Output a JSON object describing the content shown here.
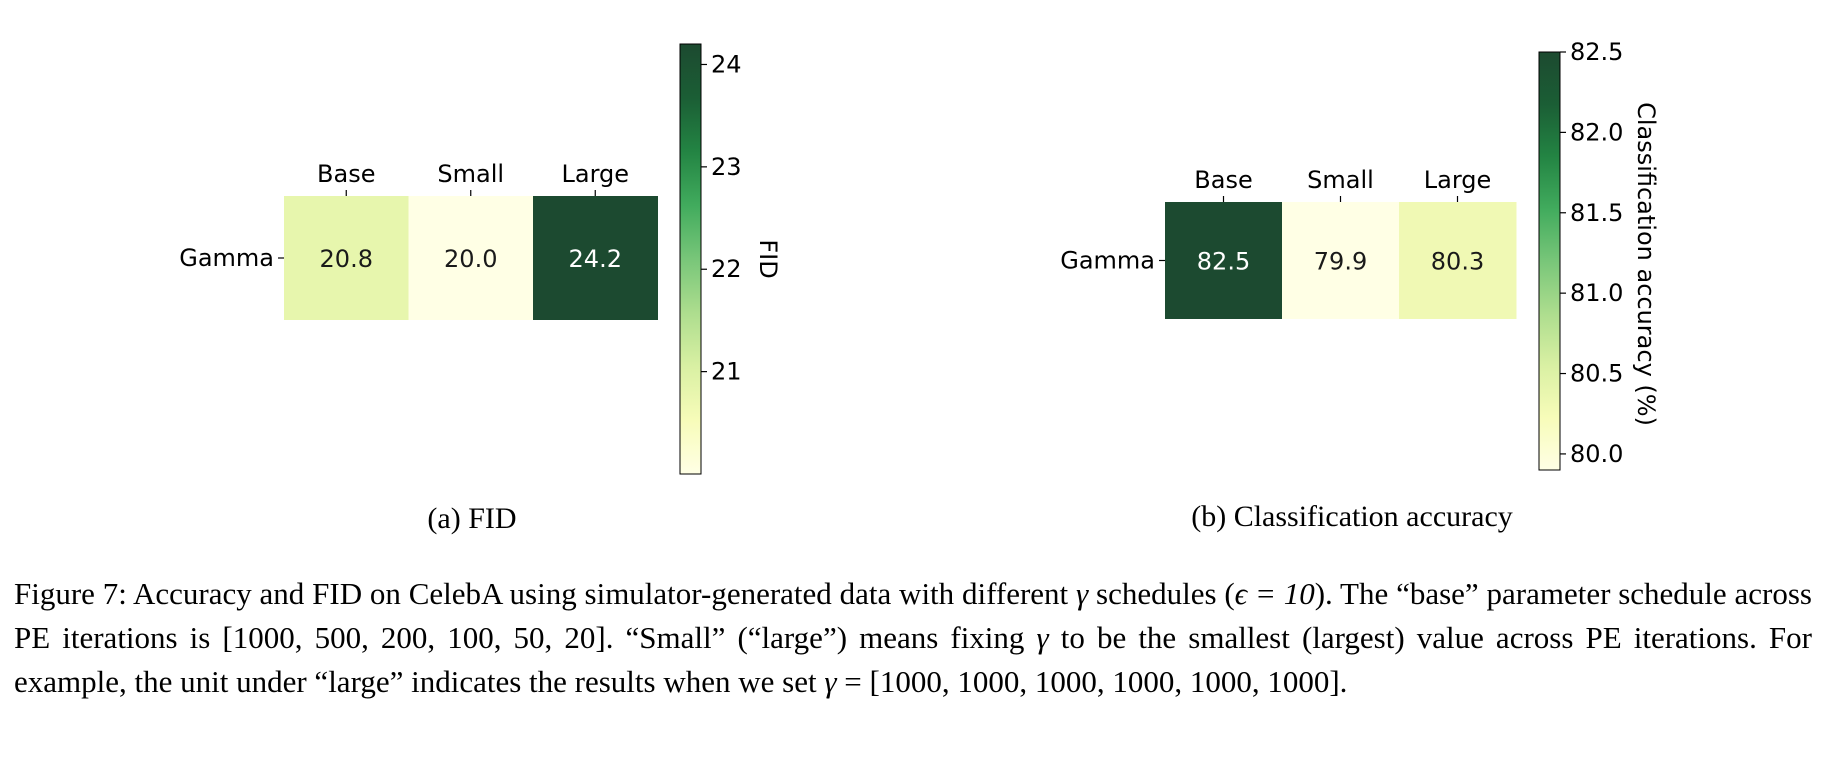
{
  "chart_data": [
    {
      "type": "heatmap",
      "subcaption": "(a) FID",
      "x_categories": [
        "Base",
        "Small",
        "Large"
      ],
      "y_categories": [
        "Gamma"
      ],
      "values": [
        [
          20.8,
          20.0,
          24.2
        ]
      ],
      "value_labels": [
        [
          "20.8",
          "20.0",
          "24.2"
        ]
      ],
      "colorbar": {
        "label": "FID",
        "range": [
          20.0,
          24.2
        ],
        "ticks": [
          21,
          22,
          23,
          24
        ],
        "tick_labels": [
          "21",
          "22",
          "23",
          "24"
        ]
      },
      "colormap": "YlGn"
    },
    {
      "type": "heatmap",
      "subcaption": "(b) Classification accuracy",
      "x_categories": [
        "Base",
        "Small",
        "Large"
      ],
      "y_categories": [
        "Gamma"
      ],
      "values": [
        [
          82.5,
          79.9,
          80.3
        ]
      ],
      "value_labels": [
        [
          "82.5",
          "79.9",
          "80.3"
        ]
      ],
      "colorbar": {
        "label": "Classification accuracy (%)",
        "range": [
          79.9,
          82.5
        ],
        "ticks": [
          80.0,
          80.5,
          81.0,
          81.5,
          82.0,
          82.5
        ],
        "tick_labels": [
          "80.0",
          "80.5",
          "81.0",
          "81.5",
          "82.0",
          "82.5"
        ]
      },
      "colormap": "YlGn"
    }
  ],
  "caption": {
    "part1": "Figure 7:  Accuracy and FID on CelebA using simulator-generated data with different ",
    "gamma": "γ",
    "part2": " schedules (",
    "epsilon": "ϵ = 10",
    "part3": ").  The “base” parameter schedule across PE iterations is [1000, 500, 200, 100, 50, 20].  “Small” (“large”) means fixing ",
    "part4": " to be the smallest (largest) value across PE iterations.  For example, the unit under “large” indicates the results when we set ",
    "part5": " = [1000, 1000, 1000, 1000, 1000, 1000]."
  },
  "colors": {
    "ylgn_low": "#ffffe5",
    "ylgn_high": "#004529"
  }
}
